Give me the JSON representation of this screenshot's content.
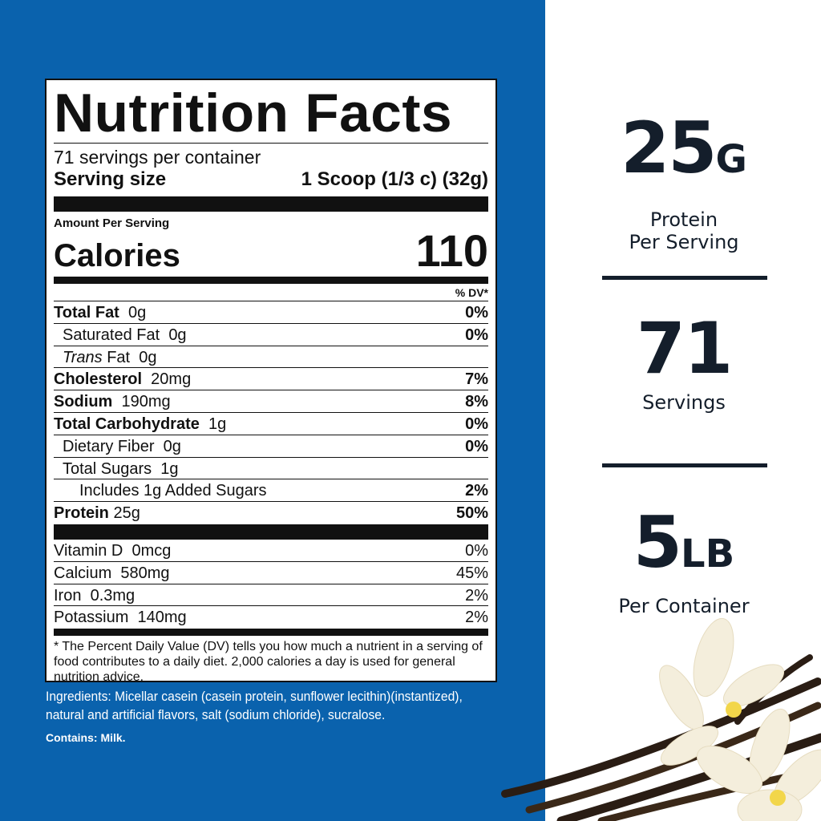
{
  "label": {
    "title": "Nutrition Facts",
    "servings_per_container": "71 servings per container",
    "serving_size_label": "Serving size",
    "serving_size_value": "1 Scoop (1/3 c) (32g)",
    "amount_per_serving": "Amount Per Serving",
    "calories_label": "Calories",
    "calories_value": "110",
    "dv_header": "% DV*",
    "nutrients": [
      {
        "name": "Total Fat",
        "amount": "0g",
        "dv": "0%"
      },
      {
        "name": "Saturated Fat",
        "amount": "0g",
        "dv": "0%"
      },
      {
        "name": "Trans",
        "name2": "Fat",
        "amount": "0g",
        "dv": ""
      },
      {
        "name": "Cholesterol",
        "amount": "20mg",
        "dv": "7%"
      },
      {
        "name": "Sodium",
        "amount": "190mg",
        "dv": "8%"
      },
      {
        "name": "Total Carbohydrate",
        "amount": "1g",
        "dv": "0%"
      },
      {
        "name": "Dietary Fiber",
        "amount": "0g",
        "dv": "0%"
      },
      {
        "name": "Total Sugars",
        "amount": "1g",
        "dv": ""
      },
      {
        "name": "Includes 1g Added Sugars",
        "amount": "",
        "dv": "2%"
      },
      {
        "name": "Protein",
        "amount": "25g",
        "dv": "50%"
      }
    ],
    "vitamins": [
      {
        "name": "Vitamin D",
        "amount": "0mcg",
        "dv": "0%"
      },
      {
        "name": "Calcium",
        "amount": "580mg",
        "dv": "45%"
      },
      {
        "name": "Iron",
        "amount": "0.3mg",
        "dv": "2%"
      },
      {
        "name": "Potassium",
        "amount": "140mg",
        "dv": "2%"
      }
    ],
    "footnote": "* The Percent Daily Value (DV) tells you how much a nutrient in a serving of food contributes to a daily diet. 2,000 calories a day is used for general nutrition advice."
  },
  "ingredients": "Ingredients: Micellar casein (casein protein, sunflower lecithin)(instantized), natural and artificial flavors, salt (sodium chloride), sucralose.",
  "contains": "Contains: Milk.",
  "stats": [
    {
      "value": "25",
      "unit": "G",
      "line1": "Protein",
      "line2": "Per Serving"
    },
    {
      "value": "71",
      "unit": "",
      "line1": "Servings",
      "line2": ""
    },
    {
      "value": "5",
      "unit": "LB",
      "line1": "Per Container",
      "line2": ""
    }
  ],
  "colors": {
    "background_blue": "#0a62ad",
    "stat_text": "#141e2b"
  }
}
